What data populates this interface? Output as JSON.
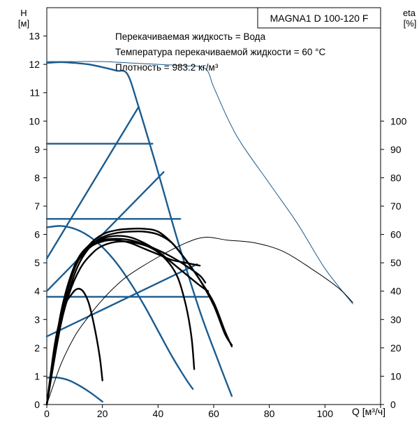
{
  "chart_data": {
    "type": "line",
    "model": "MAGNA1 D 100-120 F",
    "info": [
      "Перекачиваемая жидкость = Вода",
      "Температура перекачиваемой жидкости = 60 °C",
      "Плотность = 983.2 кг/м³"
    ],
    "y_left": {
      "label": "H",
      "unit": "[м]",
      "range": [
        0,
        14
      ],
      "ticks": [
        "0",
        "1",
        "2",
        "3",
        "4",
        "5",
        "6",
        "7",
        "8",
        "9",
        "10",
        "11",
        "12",
        "13"
      ]
    },
    "y_right": {
      "label": "eta",
      "unit": "[%]",
      "range": [
        0,
        140
      ],
      "ticks": [
        "0",
        "10",
        "20",
        "30",
        "40",
        "50",
        "60",
        "70",
        "80",
        "90",
        "100"
      ]
    },
    "x": {
      "label": "Q [м³/ч]",
      "range": [
        0,
        120
      ],
      "ticks": [
        "0",
        "20",
        "40",
        "60",
        "80",
        "100"
      ]
    },
    "grid": false,
    "colors": {
      "blue": "#1b5c8f",
      "black": "#000000"
    },
    "series": [
      {
        "axis": "H",
        "color": "#1b5c8f",
        "points": [
          [
            0,
            12.05
          ],
          [
            5,
            12.08
          ],
          [
            10,
            12.05
          ],
          [
            15,
            12.0
          ],
          [
            20,
            11.9
          ],
          [
            25,
            11.78
          ],
          [
            29,
            11.65
          ],
          [
            33,
            10.5
          ],
          [
            40,
            8.2
          ],
          [
            47,
            5.8
          ],
          [
            55,
            3.3
          ],
          [
            61,
            1.7
          ],
          [
            66.5,
            0.3
          ]
        ]
      },
      {
        "axis": "H",
        "color": "#1b5c8f",
        "points": [
          [
            0,
            6.25
          ],
          [
            5,
            6.3
          ],
          [
            10,
            6.2
          ],
          [
            15,
            5.95
          ],
          [
            20,
            5.55
          ],
          [
            25,
            5.0
          ],
          [
            30,
            4.3
          ],
          [
            35,
            3.5
          ],
          [
            40,
            2.6
          ],
          [
            45,
            1.7
          ],
          [
            50,
            0.9
          ],
          [
            52.5,
            0.55
          ]
        ]
      },
      {
        "axis": "H",
        "color": "#1b5c8f",
        "points": [
          [
            0,
            0.95
          ],
          [
            4,
            0.95
          ],
          [
            8,
            0.85
          ],
          [
            12,
            0.65
          ],
          [
            16,
            0.4
          ],
          [
            20,
            0.1
          ]
        ]
      },
      {
        "axis": "H",
        "color": "#1b5c8f",
        "points": [
          [
            0,
            9.2
          ],
          [
            38,
            9.2
          ]
        ]
      },
      {
        "axis": "H",
        "color": "#1b5c8f",
        "points": [
          [
            0,
            6.55
          ],
          [
            48,
            6.55
          ]
        ]
      },
      {
        "axis": "H",
        "color": "#1b5c8f",
        "points": [
          [
            0,
            3.8
          ],
          [
            58,
            3.8
          ]
        ]
      },
      {
        "axis": "H",
        "color": "#1b5c8f",
        "points": [
          [
            0,
            5.15
          ],
          [
            33,
            10.5
          ]
        ]
      },
      {
        "axis": "H",
        "color": "#1b5c8f",
        "points": [
          [
            0,
            4.0
          ],
          [
            42,
            8.2
          ]
        ]
      },
      {
        "axis": "H",
        "color": "#1b5c8f",
        "points": [
          [
            0,
            2.4
          ],
          [
            54,
            4.95
          ]
        ]
      },
      {
        "axis": "eta",
        "color": "#1b5c8f",
        "points": [
          [
            0,
            121
          ],
          [
            10,
            121
          ],
          [
            20,
            121
          ],
          [
            30,
            120.5
          ],
          [
            40,
            120
          ],
          [
            50,
            119.5
          ],
          [
            57,
            118.5
          ],
          [
            60,
            112
          ],
          [
            65,
            101
          ],
          [
            70,
            92
          ],
          [
            80,
            78
          ],
          [
            90,
            64
          ],
          [
            100,
            48
          ],
          [
            110,
            35.5
          ]
        ]
      },
      {
        "axis": "eta",
        "color": "#000000",
        "points": [
          [
            0,
            0
          ],
          [
            5,
            14
          ],
          [
            10,
            24
          ],
          [
            15,
            31
          ],
          [
            20,
            37
          ],
          [
            25,
            42
          ],
          [
            30,
            46
          ],
          [
            40,
            52
          ],
          [
            50,
            57
          ],
          [
            57,
            59
          ],
          [
            65,
            58
          ],
          [
            75,
            57
          ],
          [
            85,
            54
          ],
          [
            95,
            48
          ],
          [
            105,
            41
          ],
          [
            110,
            36
          ]
        ]
      },
      {
        "axis": "H",
        "color": "#000000",
        "points": [
          [
            0,
            0
          ],
          [
            3,
            2.2
          ],
          [
            6,
            3.4
          ],
          [
            9,
            3.9
          ],
          [
            11,
            4.08
          ],
          [
            13,
            4.0
          ],
          [
            15,
            3.6
          ],
          [
            17,
            2.8
          ],
          [
            19,
            1.7
          ],
          [
            20,
            0.85
          ]
        ]
      },
      {
        "axis": "H",
        "color": "#000000",
        "points": [
          [
            0,
            0
          ],
          [
            4,
            2.4
          ],
          [
            8,
            3.9
          ],
          [
            12,
            4.8
          ],
          [
            16,
            5.3
          ],
          [
            20,
            5.6
          ],
          [
            26,
            5.75
          ],
          [
            32,
            5.7
          ],
          [
            38,
            5.5
          ],
          [
            43,
            5.1
          ],
          [
            47,
            4.5
          ],
          [
            50,
            3.5
          ],
          [
            52,
            2.4
          ],
          [
            53,
            1.25
          ]
        ]
      },
      {
        "axis": "H",
        "color": "#000000",
        "points": [
          [
            0,
            0
          ],
          [
            5,
            2.8
          ],
          [
            10,
            4.6
          ],
          [
            15,
            5.5
          ],
          [
            20,
            5.9
          ],
          [
            25,
            6.05
          ],
          [
            30,
            6.1
          ],
          [
            35,
            6.1
          ],
          [
            40,
            6.0
          ],
          [
            45,
            5.7
          ],
          [
            50,
            5.1
          ],
          [
            55,
            4.4
          ],
          [
            60,
            3.5
          ],
          [
            64,
            2.5
          ],
          [
            66.5,
            2.1
          ]
        ]
      },
      {
        "axis": "H",
        "color": "#000000",
        "points": [
          [
            0,
            0
          ],
          [
            5,
            3.0
          ],
          [
            10,
            4.8
          ],
          [
            15,
            5.6
          ],
          [
            20,
            6.0
          ],
          [
            25,
            6.15
          ],
          [
            30,
            6.2
          ],
          [
            35,
            6.2
          ],
          [
            40,
            6.1
          ],
          [
            45,
            5.7
          ],
          [
            50,
            5.1
          ],
          [
            55,
            4.4
          ],
          [
            60,
            3.6
          ],
          [
            64,
            2.6
          ],
          [
            66.5,
            2.05
          ]
        ]
      },
      {
        "axis": "H",
        "color": "#000000",
        "points": [
          [
            0,
            0
          ],
          [
            5,
            3.2
          ],
          [
            10,
            4.9
          ],
          [
            15,
            5.6
          ],
          [
            20,
            5.8
          ],
          [
            25,
            5.85
          ],
          [
            30,
            5.8
          ],
          [
            35,
            5.65
          ],
          [
            40,
            5.45
          ],
          [
            45,
            5.2
          ],
          [
            50,
            4.9
          ],
          [
            55,
            4.55
          ],
          [
            57,
            4.3
          ]
        ]
      },
      {
        "axis": "H",
        "color": "#000000",
        "points": [
          [
            0,
            0
          ],
          [
            5,
            3.0
          ],
          [
            10,
            4.8
          ],
          [
            15,
            5.5
          ],
          [
            20,
            5.75
          ],
          [
            25,
            5.8
          ],
          [
            30,
            5.7
          ],
          [
            35,
            5.5
          ],
          [
            40,
            5.3
          ],
          [
            45,
            5.1
          ],
          [
            50,
            5.0
          ],
          [
            55,
            4.9
          ]
        ]
      },
      {
        "axis": "H",
        "color": "#000000",
        "points": [
          [
            0,
            0
          ],
          [
            5,
            3.1
          ],
          [
            10,
            4.85
          ],
          [
            15,
            5.55
          ],
          [
            20,
            5.85
          ],
          [
            25,
            5.95
          ],
          [
            30,
            5.9
          ],
          [
            35,
            5.7
          ],
          [
            40,
            5.4
          ],
          [
            45,
            5.0
          ],
          [
            50,
            4.6
          ],
          [
            55,
            4.2
          ],
          [
            58,
            4.0
          ]
        ]
      }
    ]
  }
}
